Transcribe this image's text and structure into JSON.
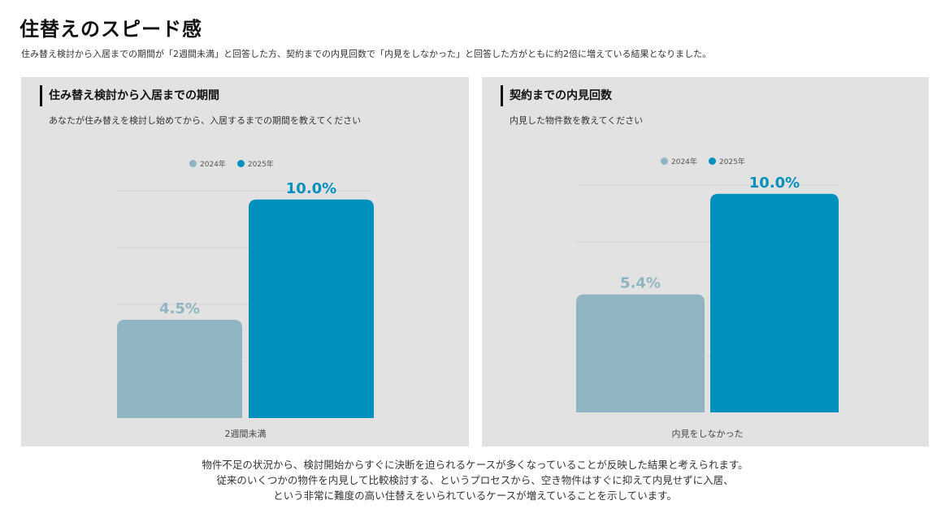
{
  "header": {
    "title": "住替えのスピード感",
    "subtitle": "住み替え検討から入居までの期間が「2週間未満」と回答した方、契約までの内見回数で「内見をしなかった」と回答した方がともに約2倍に増えている結果となりました。"
  },
  "colors": {
    "series_2024": "#8fb5c3",
    "series_2025": "#0090bd"
  },
  "chart_data": [
    {
      "type": "bar",
      "title": "住み替え検討から入居までの期間",
      "subtitle": "あなたが住み替えを検討し始めてから、入居するまでの期間を教えてください",
      "categories": [
        "2週間未満"
      ],
      "series": [
        {
          "name": "2024年",
          "values": [
            4.5
          ],
          "label": "4.5%"
        },
        {
          "name": "2025年",
          "values": [
            10.0
          ],
          "label": "10.0%"
        }
      ],
      "xlabel": "",
      "ylabel": "",
      "ylim": [
        0,
        10.4
      ],
      "grid": true,
      "legend": "top-center"
    },
    {
      "type": "bar",
      "title": "契約までの内見回数",
      "subtitle": "内見した物件数を教えてください",
      "categories": [
        "内見をしなかった"
      ],
      "series": [
        {
          "name": "2024年",
          "values": [
            5.4
          ],
          "label": "5.4%"
        },
        {
          "name": "2025年",
          "values": [
            10.0
          ],
          "label": "10.0%"
        }
      ],
      "xlabel": "",
      "ylabel": "",
      "ylim": [
        0,
        10.4
      ],
      "grid": true,
      "legend": "top-center"
    }
  ],
  "footer": {
    "lines": [
      "物件不足の状況から、検討開始からすぐに決断を迫られるケースが多くなっていることが反映した結果と考えられます。",
      "従来のいくつかの物件を内見して比較検討する、というプロセスから、空き物件はすぐに抑えて内見せずに入居、",
      "という非常に難度の高い住替えをいられているケースが増えていることを示しています。"
    ]
  }
}
